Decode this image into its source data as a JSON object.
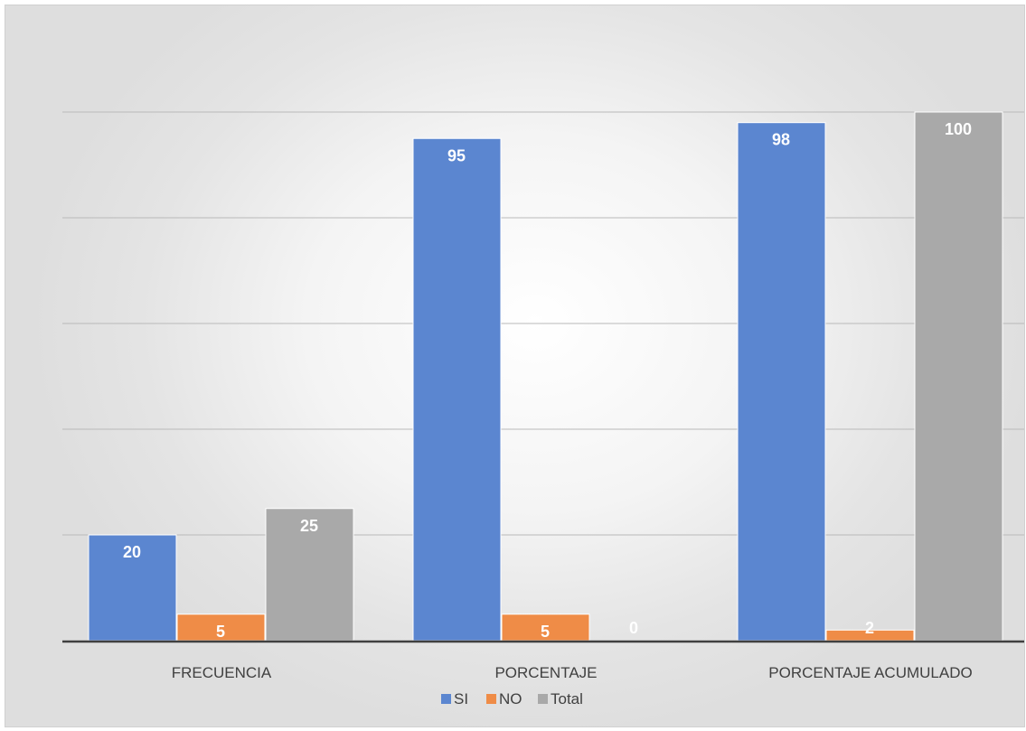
{
  "chart_data": {
    "type": "bar",
    "title": "",
    "xlabel": "",
    "ylabel": "",
    "ylim": [
      0,
      100
    ],
    "gridline_step": 20,
    "grid": true,
    "legend_position": "bottom",
    "categories": [
      "FRECUENCIA",
      "PORCENTAJE",
      "PORCENTAJE ACUMULADO"
    ],
    "series": [
      {
        "name": "SI",
        "color": "#5b86d0",
        "values": [
          20,
          95,
          98
        ],
        "labels": [
          "20",
          "95",
          "98"
        ]
      },
      {
        "name": "NO",
        "color": "#ef8c47",
        "values": [
          5,
          5,
          2
        ],
        "labels": [
          "5",
          "5",
          "2"
        ]
      },
      {
        "name": "Total",
        "color": "#a9a9a9",
        "values": [
          25,
          0,
          100
        ],
        "labels": [
          "25",
          "0",
          "100"
        ]
      }
    ]
  }
}
